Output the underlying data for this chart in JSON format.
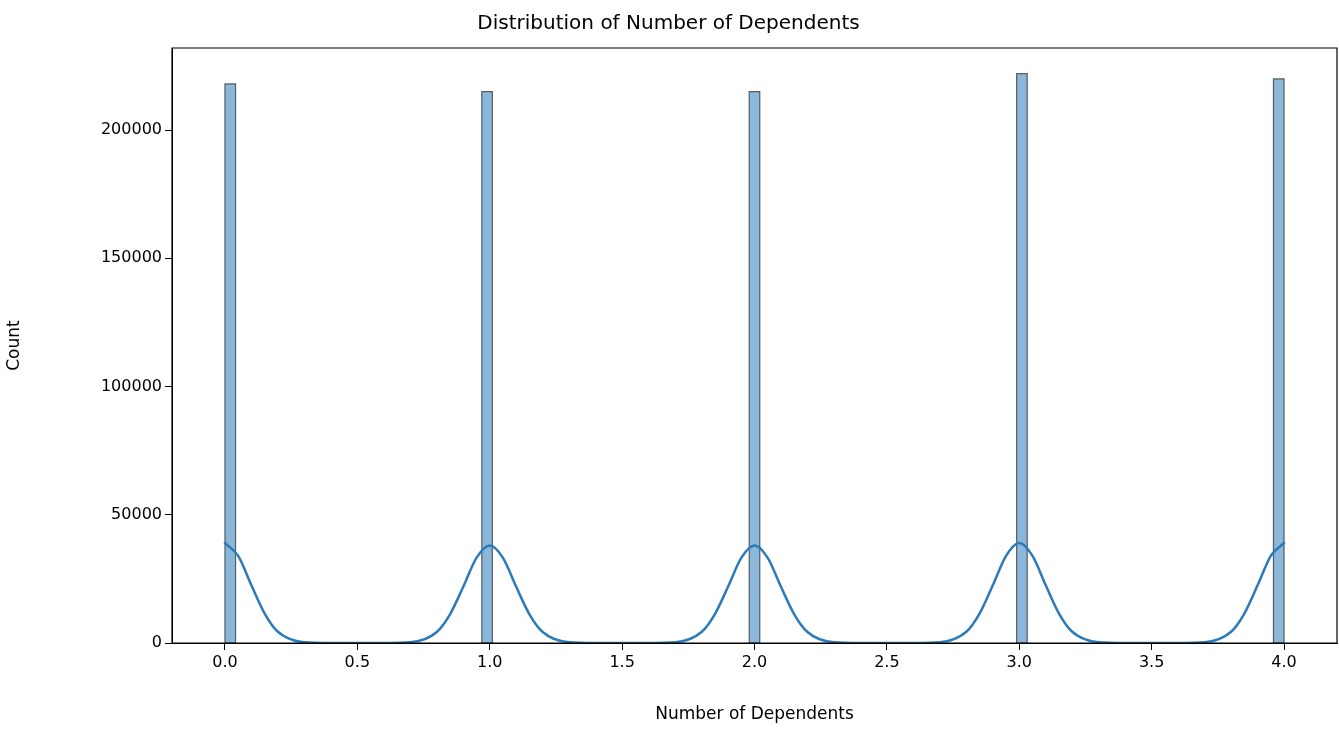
{
  "chart_data": {
    "type": "histogram",
    "title": "Distribution of Number of Dependents",
    "xlabel": "Number of Dependents",
    "ylabel": "Count",
    "bins": [
      0,
      0.04,
      0.97,
      1.01,
      1.98,
      2.02,
      2.99,
      3.03,
      3.96,
      4.0
    ],
    "series": [
      {
        "type": "histogram",
        "color": "#8bb8da",
        "values": [
          218000,
          0,
          215000,
          0,
          215000,
          0,
          222000,
          0,
          220000
        ]
      },
      {
        "type": "line",
        "color": "#2b7bba",
        "x": [
          0,
          0.05,
          0.1,
          0.15,
          0.2,
          0.3,
          0.4,
          0.6,
          0.7,
          0.8,
          0.85,
          0.9,
          0.95,
          1.0,
          1.05,
          1.1,
          1.15,
          1.2,
          1.3,
          1.4,
          1.6,
          1.7,
          1.8,
          1.85,
          1.9,
          1.95,
          2.0,
          2.05,
          2.1,
          2.15,
          2.2,
          2.3,
          2.4,
          2.6,
          2.7,
          2.8,
          2.85,
          2.9,
          2.95,
          3.0,
          3.05,
          3.1,
          3.15,
          3.2,
          3.3,
          3.4,
          3.6,
          3.7,
          3.8,
          3.85,
          3.9,
          3.95,
          4.0
        ],
        "values": [
          39000,
          34000,
          22500,
          11500,
          4400,
          300,
          0,
          0,
          300,
          4300,
          11200,
          21900,
          33200,
          38000,
          33200,
          21900,
          11200,
          4300,
          300,
          0,
          0,
          300,
          4300,
          11200,
          21900,
          33200,
          38000,
          33200,
          21900,
          11200,
          4300,
          300,
          0,
          0,
          300,
          4400,
          11500,
          22500,
          34000,
          39000,
          34000,
          22500,
          11500,
          4400,
          300,
          0,
          0,
          300,
          4400,
          11500,
          22500,
          34000,
          39000
        ]
      }
    ],
    "xlim": [
      -0.2,
      4.2
    ],
    "xticks": [
      {
        "value": 0,
        "label": "0.0"
      },
      {
        "value": 0.5,
        "label": "0.5"
      },
      {
        "value": 1,
        "label": "1.0"
      },
      {
        "value": 1.5,
        "label": "1.5"
      },
      {
        "value": 2,
        "label": "2.0"
      },
      {
        "value": 2.5,
        "label": "2.5"
      },
      {
        "value": 3,
        "label": "3.0"
      },
      {
        "value": 3.5,
        "label": "3.5"
      },
      {
        "value": 4,
        "label": "4.0"
      }
    ],
    "ylim": [
      0,
      232000
    ],
    "yticks": [
      0,
      50000,
      100000,
      150000,
      200000
    ],
    "grid": false,
    "legend": false
  }
}
